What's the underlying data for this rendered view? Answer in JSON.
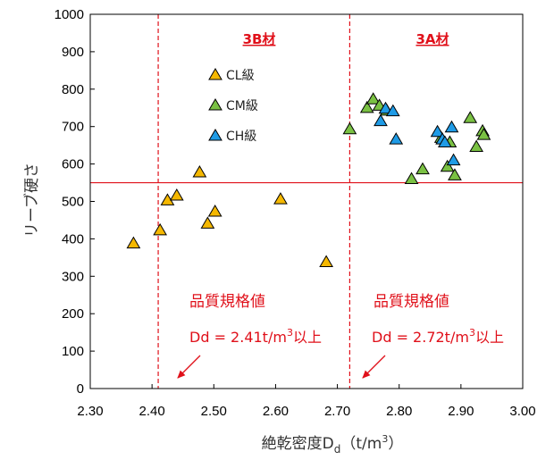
{
  "chart_data": {
    "type": "scatter",
    "title": "",
    "xlabel": "絶乾密度D",
    "xlabel_sub": "d",
    "xlabel_unit_open": "（t/m",
    "xlabel_unit_sup": "3",
    "xlabel_unit_close": "）",
    "ylabel": "リーブ硬さ",
    "xlim": [
      2.3,
      3.0
    ],
    "ylim": [
      0,
      1000
    ],
    "x_ticks": [
      "2.30",
      "2.40",
      "2.50",
      "2.60",
      "2.70",
      "2.80",
      "2.90",
      "3.00"
    ],
    "y_ticks": [
      "0",
      "100",
      "200",
      "300",
      "400",
      "500",
      "600",
      "700",
      "800",
      "900",
      "1000"
    ],
    "grid": false,
    "legend_position": "upper-left-inside",
    "series": [
      {
        "name": "CL級",
        "color": "#f5b800",
        "points": [
          [
            2.37,
            390
          ],
          [
            2.413,
            425
          ],
          [
            2.425,
            505
          ],
          [
            2.44,
            518
          ],
          [
            2.477,
            580
          ],
          [
            2.49,
            443
          ],
          [
            2.502,
            475
          ],
          [
            2.608,
            508
          ],
          [
            2.682,
            340
          ]
        ]
      },
      {
        "name": "CM級",
        "color": "#7ac143",
        "points": [
          [
            2.72,
            695
          ],
          [
            2.748,
            752
          ],
          [
            2.758,
            775
          ],
          [
            2.768,
            758
          ],
          [
            2.78,
            745
          ],
          [
            2.82,
            562
          ],
          [
            2.838,
            588
          ],
          [
            2.868,
            672
          ],
          [
            2.878,
            595
          ],
          [
            2.882,
            660
          ],
          [
            2.89,
            572
          ],
          [
            2.915,
            725
          ],
          [
            2.925,
            648
          ],
          [
            2.935,
            690
          ],
          [
            2.937,
            680
          ]
        ]
      },
      {
        "name": "CH級",
        "color": "#1f9be6",
        "points": [
          [
            2.77,
            717
          ],
          [
            2.778,
            750
          ],
          [
            2.79,
            743
          ],
          [
            2.795,
            668
          ],
          [
            2.862,
            688
          ],
          [
            2.87,
            668
          ],
          [
            2.874,
            660
          ],
          [
            2.885,
            700
          ],
          [
            2.888,
            612
          ]
        ]
      }
    ],
    "reference_lines": {
      "horizontal_y": 550,
      "vertical_x": [
        2.41,
        2.72
      ]
    },
    "region_labels": [
      "3B材",
      "3A材"
    ],
    "annotations": [
      {
        "label": "品質規格値",
        "value_prefix": "Dd = 2.41t/m",
        "value_sup": "3",
        "value_suffix": "以上"
      },
      {
        "label": "品質規格値",
        "value_prefix": "Dd = 2.72t/m",
        "value_sup": "3",
        "value_suffix": "以上"
      }
    ]
  }
}
